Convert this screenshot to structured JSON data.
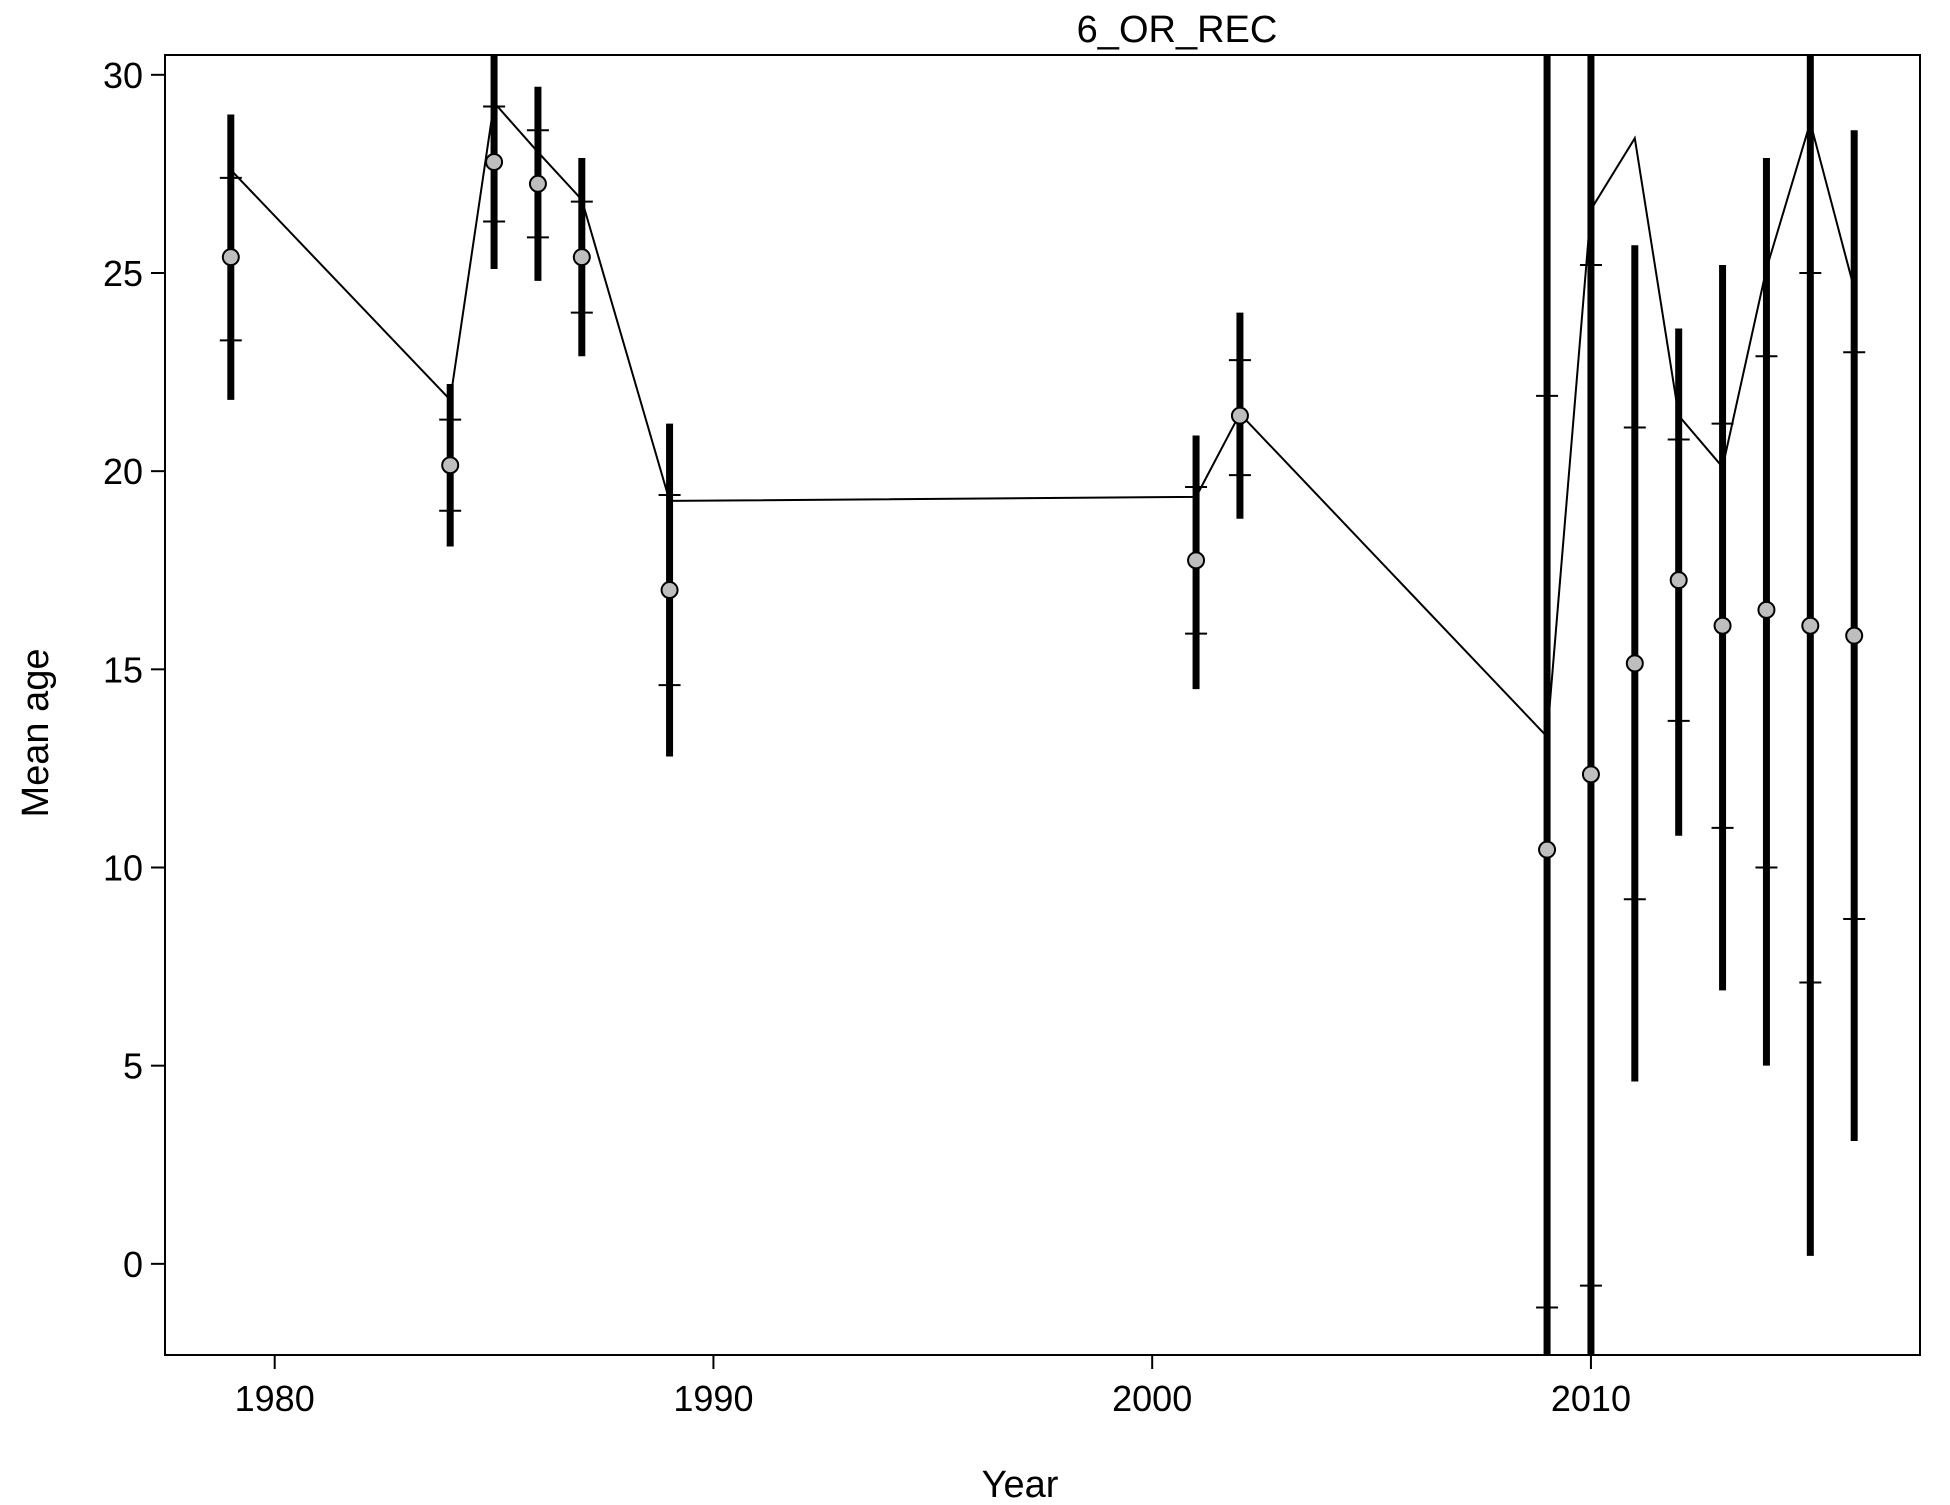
{
  "chart_data": {
    "type": "line",
    "title": "6_OR_REC",
    "xlabel": "Year",
    "ylabel": "Mean age",
    "xlim": [
      1977.5,
      2017.5
    ],
    "ylim": [
      -2.3,
      30.5
    ],
    "xticks": [
      1980,
      1990,
      2000,
      2010
    ],
    "yticks": [
      0,
      5,
      10,
      15,
      20,
      25,
      30
    ],
    "grid": false,
    "legend": "none",
    "colors": {
      "line": "#000000",
      "points": "#bebebe",
      "bars": "#000000"
    },
    "observations": [
      {
        "year": 1979,
        "obs": 25.4,
        "outer": [
          21.8,
          29.0
        ],
        "inner": [
          23.3,
          27.4
        ]
      },
      {
        "year": 1984,
        "obs": 20.15,
        "outer": [
          18.1,
          22.2
        ],
        "inner": [
          19.0,
          21.3
        ]
      },
      {
        "year": 1985,
        "obs": 27.8,
        "outer": [
          25.1,
          30.5
        ],
        "inner": [
          26.3,
          29.2
        ]
      },
      {
        "year": 1986,
        "obs": 27.25,
        "outer": [
          24.8,
          29.7
        ],
        "inner": [
          25.9,
          28.6
        ]
      },
      {
        "year": 1987,
        "obs": 25.4,
        "outer": [
          22.9,
          27.9
        ],
        "inner": [
          24.0,
          26.8
        ]
      },
      {
        "year": 1989,
        "obs": 17.0,
        "outer": [
          12.8,
          21.2
        ],
        "inner": [
          14.6,
          19.4
        ]
      },
      {
        "year": 2001,
        "obs": 17.75,
        "outer": [
          14.5,
          20.9
        ],
        "inner": [
          15.9,
          19.6
        ]
      },
      {
        "year": 2002,
        "obs": 21.4,
        "outer": [
          18.8,
          24.0
        ],
        "inner": [
          19.9,
          22.8
        ]
      },
      {
        "year": 2009,
        "obs": 10.45,
        "outer": [
          -2.3,
          30.5
        ],
        "inner": [
          -1.1,
          21.9
        ]
      },
      {
        "year": 2010,
        "obs": 12.35,
        "outer": [
          -2.3,
          30.5
        ],
        "inner": [
          -0.55,
          25.2
        ]
      },
      {
        "year": 2011,
        "obs": 15.15,
        "outer": [
          4.6,
          25.7
        ],
        "inner": [
          9.2,
          21.1
        ]
      },
      {
        "year": 2012,
        "obs": 17.25,
        "outer": [
          10.8,
          23.6
        ],
        "inner": [
          13.7,
          20.8
        ]
      },
      {
        "year": 2013,
        "obs": 16.1,
        "outer": [
          6.9,
          25.2
        ],
        "inner": [
          11.0,
          21.2
        ]
      },
      {
        "year": 2014,
        "obs": 16.5,
        "outer": [
          5.0,
          27.9
        ],
        "inner": [
          10.0,
          22.9
        ]
      },
      {
        "year": 2015,
        "obs": 16.1,
        "outer": [
          0.2,
          30.5
        ],
        "inner": [
          7.1,
          25.0
        ]
      },
      {
        "year": 2016,
        "obs": 15.85,
        "outer": [
          3.1,
          28.6
        ],
        "inner": [
          8.7,
          23.0
        ]
      }
    ],
    "expected_line": [
      {
        "year": 1979,
        "value": 27.6
      },
      {
        "year": 1984,
        "value": 21.8
      },
      {
        "year": 1985,
        "value": 29.3
      },
      {
        "year": 1986,
        "value": 28.05
      },
      {
        "year": 1987,
        "value": 26.85
      },
      {
        "year": 1989,
        "value": 19.25
      },
      {
        "year": 2001,
        "value": 19.35
      },
      {
        "year": 2002,
        "value": 21.45
      },
      {
        "year": 2009,
        "value": 13.3
      },
      {
        "year": 2010,
        "value": 26.6
      },
      {
        "year": 2011,
        "value": 28.4
      },
      {
        "year": 2012,
        "value": 21.4
      },
      {
        "year": 2013,
        "value": 20.1
      },
      {
        "year": 2014,
        "value": 25.1
      },
      {
        "year": 2015,
        "value": 28.8
      },
      {
        "year": 2016,
        "value": 24.6
      }
    ]
  }
}
